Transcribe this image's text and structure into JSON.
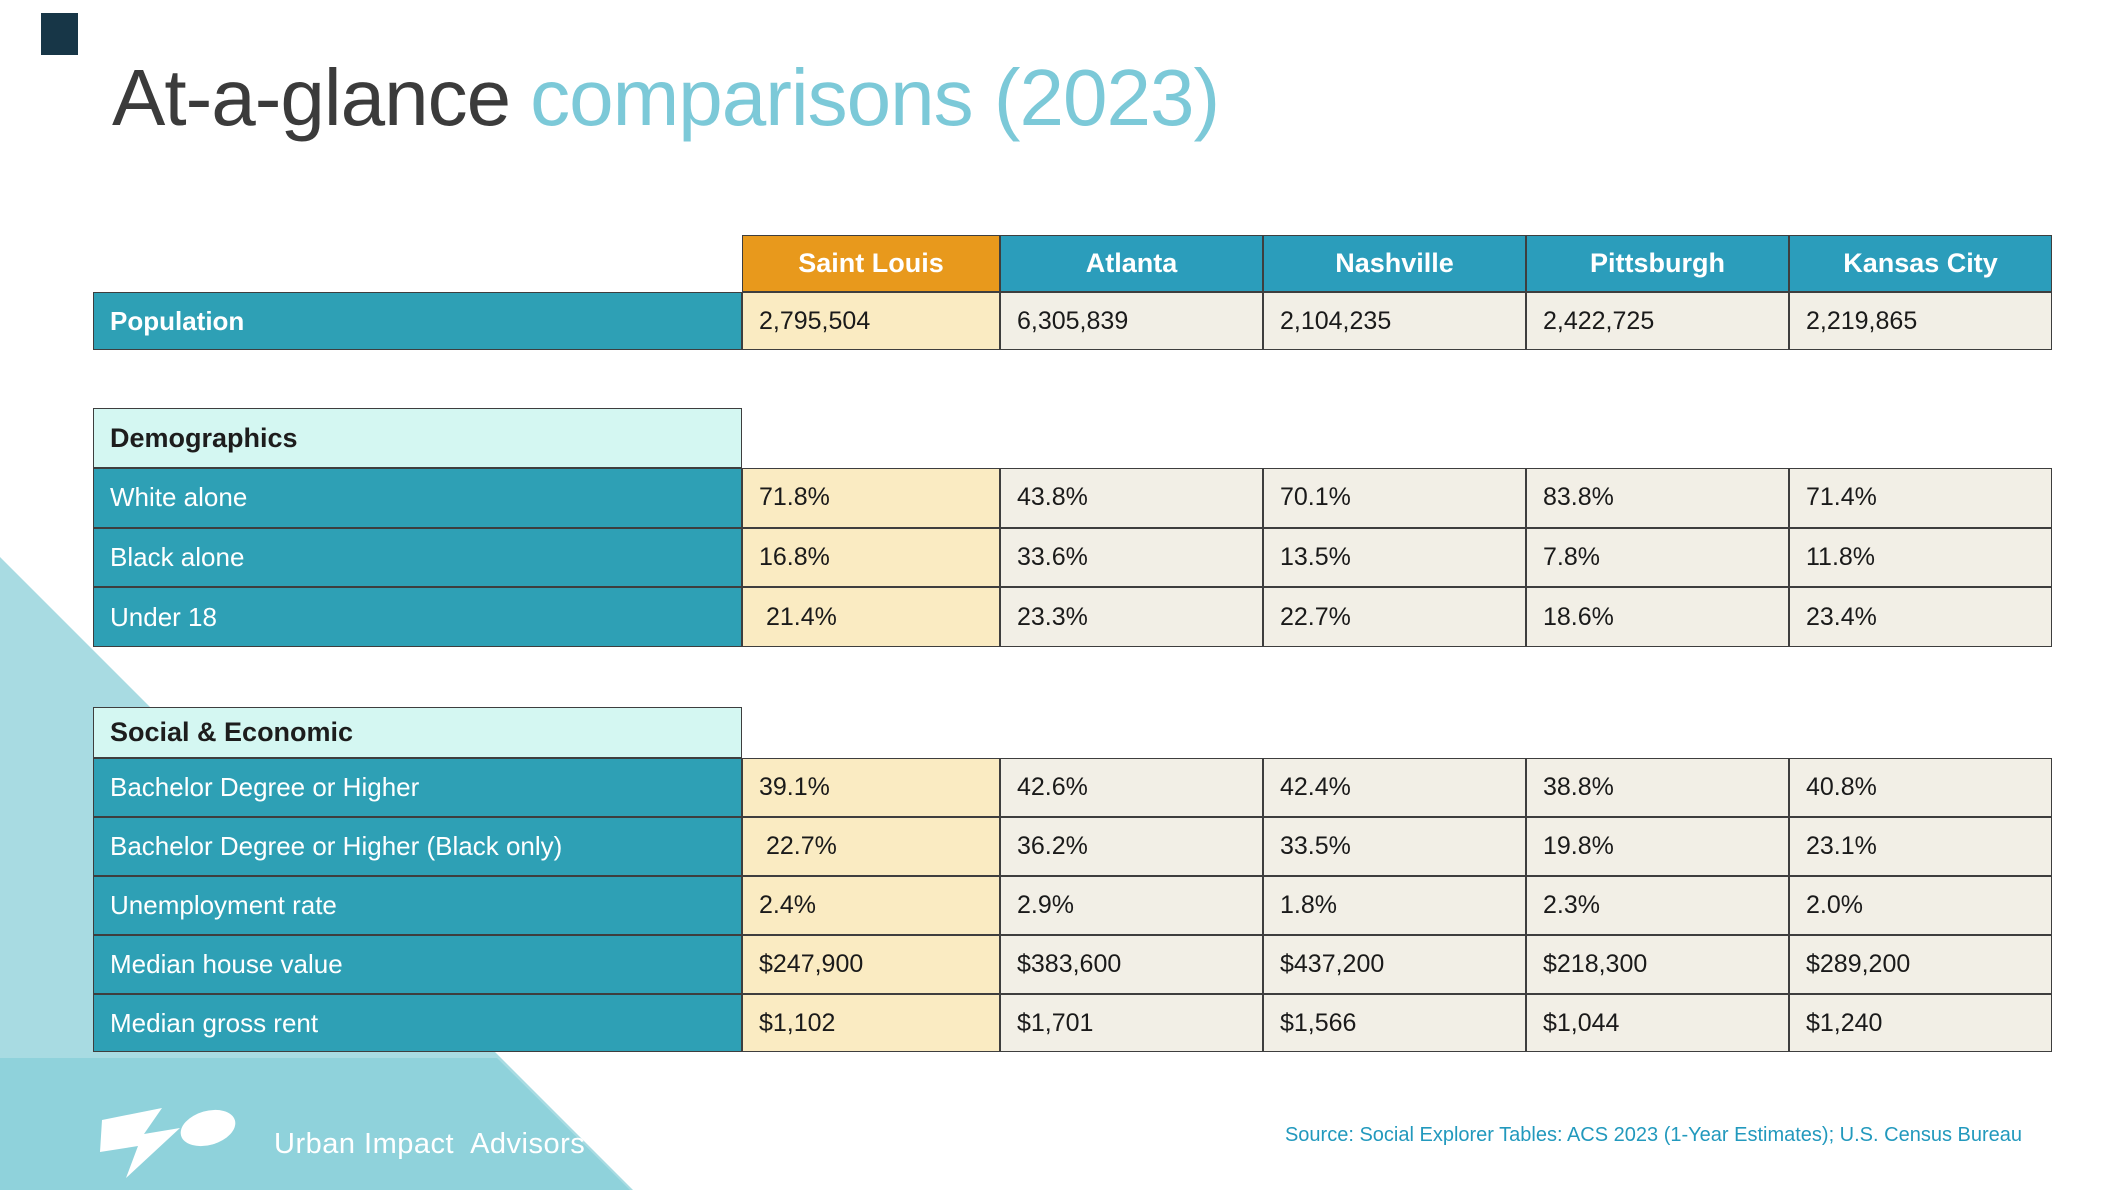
{
  "slide": {
    "title": {
      "dark": "At-a-glance",
      "accent": "comparisons (2023)"
    },
    "source": "Source: Social Explorer Tables: ACS 2023 (1-Year Estimates); U.S. Census Bureau",
    "brand": {
      "name_1": "Urban Impact",
      "name_2": "Advisors"
    }
  },
  "colors": {
    "highlight_orange": "#e8991c",
    "header_teal": "#2b9dbb",
    "row_teal": "#2ea0b5",
    "section_header_bg": "#d4f7f2",
    "saint_louis_col_bg": "#faebc2",
    "value_col_bg": "#f2efe6",
    "title_dark": "#3b3b3b",
    "title_accent": "#7cc9d8",
    "triangle_light": "#a8dbe2",
    "footer_teal": "#8fd2db",
    "source_text": "#2299bd",
    "corner_mark": "#173647"
  },
  "table": {
    "cities": [
      "Saint Louis",
      "Atlanta",
      "Nashville",
      "Pittsburgh",
      "Kansas City"
    ],
    "highlight_city_index": 0,
    "population": {
      "label": "Population",
      "values": [
        "2,795,504",
        "6,305,839",
        "2,104,235",
        "2,422,725",
        "2,219,865"
      ]
    },
    "sections": [
      {
        "title": "Demographics",
        "rows": [
          {
            "label": "White alone",
            "values": [
              "71.8%",
              "43.8%",
              "70.1%",
              "83.8%",
              "71.4%"
            ]
          },
          {
            "label": "Black alone",
            "values": [
              "16.8%",
              "33.6%",
              "13.5%",
              "7.8%",
              "11.8%"
            ]
          },
          {
            "label": "Under 18",
            "values": [
              " 21.4%",
              "23.3%",
              "22.7%",
              "18.6%",
              "23.4%"
            ]
          }
        ]
      },
      {
        "title": "Social & Economic",
        "rows": [
          {
            "label": "Bachelor Degree or Higher",
            "values": [
              "39.1%",
              "42.6%",
              "42.4%",
              "38.8%",
              "40.8%"
            ]
          },
          {
            "label": "Bachelor Degree or Higher (Black only)",
            "values": [
              " 22.7%",
              "36.2%",
              "33.5%",
              "19.8%",
              "23.1%"
            ]
          },
          {
            "label": "Unemployment rate",
            "values": [
              "2.4%",
              "2.9%",
              "1.8%",
              "2.3%",
              "2.0%"
            ]
          },
          {
            "label": "Median house value",
            "values": [
              "$247,900",
              "$383,600",
              "$437,200",
              "$218,300",
              "$289,200"
            ]
          },
          {
            "label": "Median gross rent",
            "values": [
              "$1,102",
              "$1,701",
              "$1,566",
              "$1,044",
              "$1,240"
            ]
          }
        ]
      }
    ]
  }
}
